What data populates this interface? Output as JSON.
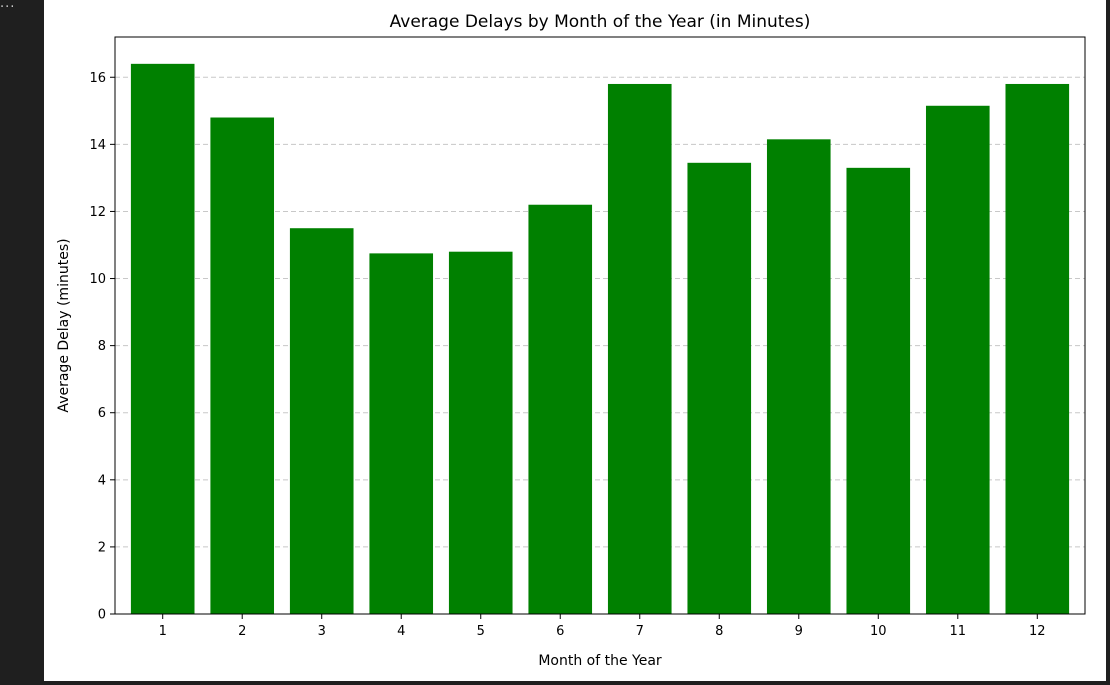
{
  "output_cell": {
    "prompt_ellipsis": "..."
  },
  "chart_data": {
    "type": "bar",
    "title": "Average Delays by Month of the Year (in Minutes)",
    "xlabel": "Month of the Year",
    "ylabel": "Average Delay (minutes)",
    "categories": [
      "1",
      "2",
      "3",
      "4",
      "5",
      "6",
      "7",
      "8",
      "9",
      "10",
      "11",
      "12"
    ],
    "values": [
      16.4,
      14.8,
      11.5,
      10.75,
      10.8,
      12.2,
      15.8,
      13.45,
      14.15,
      13.3,
      15.15,
      15.8
    ],
    "ylim": [
      0,
      17.2
    ],
    "yticks": [
      0,
      2,
      4,
      6,
      8,
      10,
      12,
      14,
      16
    ],
    "grid": "y-dashed",
    "bar_color": "#008000",
    "grid_color": "#c8c8c8"
  }
}
